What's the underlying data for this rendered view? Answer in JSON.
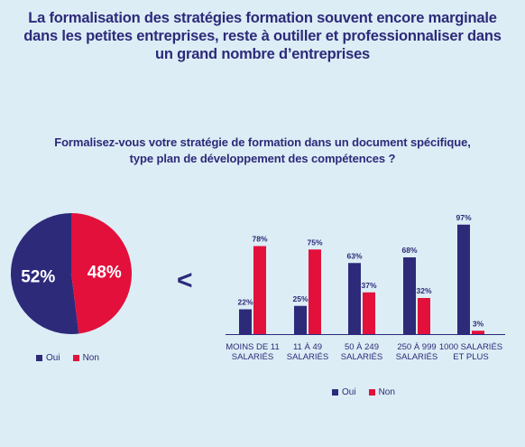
{
  "headline": [
    "La formalisation des stratégies formation souvent encore marginale",
    "dans les petites entreprises, reste à outiller et professionnaliser dans",
    "un grand nombre d’entreprises"
  ],
  "question": [
    "Formalisez-vous votre stratégie de formation dans un document spécifique,",
    "type plan de développement des compétences ?"
  ],
  "comparator": "<",
  "colors": {
    "oui": "#2d2a7a",
    "non": "#e3103c",
    "background": "#dcedf5"
  },
  "legend": {
    "oui": "Oui",
    "non": "Non"
  },
  "chart_data": [
    {
      "type": "pie",
      "slices": [
        {
          "name": "Oui",
          "value": 52,
          "label": "52%",
          "color": "#2d2a7a"
        },
        {
          "name": "Non",
          "value": 48,
          "label": "48%",
          "color": "#e3103c"
        }
      ],
      "legend_placement": "bottom"
    },
    {
      "type": "bar",
      "categories": [
        [
          "MOINS DE 11",
          "SALARIÉS"
        ],
        [
          "11 À 49",
          "SALARIÉS"
        ],
        [
          "50 À 249",
          "SALARIÉS"
        ],
        [
          "250 À 999",
          "SALARIÉS"
        ],
        [
          "1000 SALARIÉS",
          "ET PLUS"
        ]
      ],
      "series": [
        {
          "name": "Oui",
          "values": [
            22,
            25,
            63,
            68,
            97
          ],
          "labels": [
            "22%",
            "25%",
            "63%",
            "68%",
            "97%"
          ],
          "color": "#2d2a7a"
        },
        {
          "name": "Non",
          "values": [
            78,
            75,
            37,
            32,
            3
          ],
          "labels": [
            "78%",
            "75%",
            "37%",
            "32%",
            "3%"
          ],
          "color": "#e3103c"
        }
      ],
      "ylim": [
        0,
        100
      ],
      "grid": false,
      "legend_placement": "bottom"
    }
  ]
}
